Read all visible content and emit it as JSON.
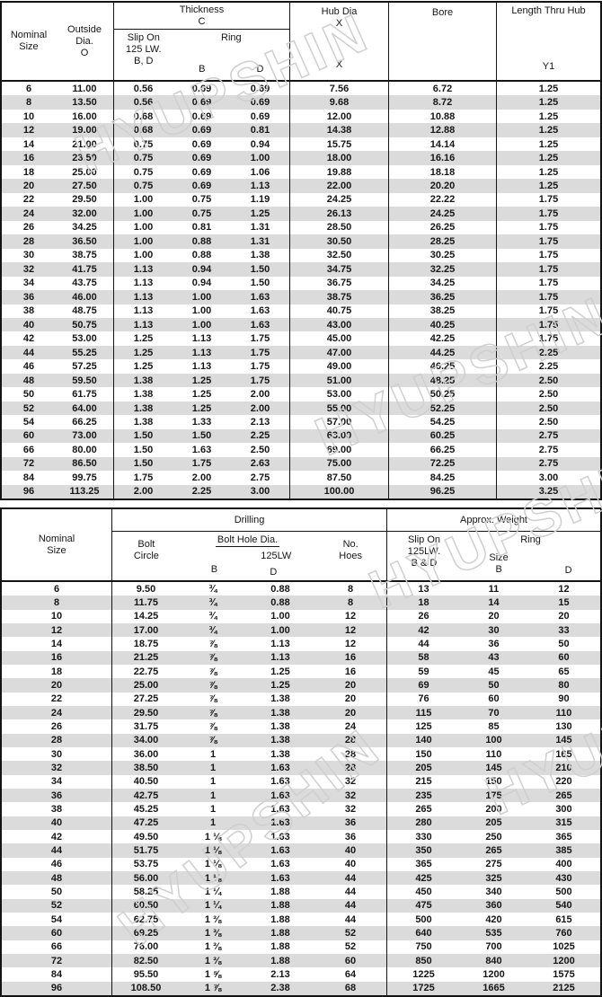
{
  "watermark": {
    "text": "HYUPSHIN"
  },
  "top_table": {
    "headers": {
      "nominal_l1": "Nominal",
      "nominal_l2": "Size",
      "outside_l1": "Outside",
      "outside_l2": "Dia.",
      "outside_l3": "O",
      "thickness": "Thickness",
      "thickness_c": "C",
      "slip_l1": "Slip On",
      "slip_l2": "125 LW.",
      "slip_l3": "B, D",
      "ring": "Ring",
      "ring_b": "B",
      "ring_d": "D",
      "hub_l1": "Hub Dia",
      "hub_l2": "X",
      "hub_x": "X",
      "bore": "Bore",
      "length": "Length Thru Hub",
      "length_y1": "Y1"
    },
    "rows": [
      [
        "6",
        "11.00",
        "0.56",
        "0.69",
        "0.69",
        "7.56",
        "6.72",
        "1.25"
      ],
      [
        "8",
        "13.50",
        "0.56",
        "0.69",
        "0.69",
        "9.68",
        "8.72",
        "1.25"
      ],
      [
        "10",
        "16.00",
        "0.68",
        "0.69",
        "0.69",
        "12.00",
        "10.88",
        "1.25"
      ],
      [
        "12",
        "19.00",
        "0.68",
        "0.69",
        "0.81",
        "14.38",
        "12.88",
        "1.25"
      ],
      [
        "14",
        "21.00",
        "0.75",
        "0.69",
        "0.94",
        "15.75",
        "14.14",
        "1.25"
      ],
      [
        "16",
        "23.50",
        "0.75",
        "0.69",
        "1.00",
        "18.00",
        "16.16",
        "1.25"
      ],
      [
        "18",
        "25.00",
        "0.75",
        "0.69",
        "1.06",
        "19.88",
        "18.18",
        "1.25"
      ],
      [
        "20",
        "27.50",
        "0.75",
        "0.69",
        "1.13",
        "22.00",
        "20.20",
        "1.25"
      ],
      [
        "22",
        "29.50",
        "1.00",
        "0.75",
        "1.19",
        "24.25",
        "22.22",
        "1.75"
      ],
      [
        "24",
        "32.00",
        "1.00",
        "0.75",
        "1.25",
        "26.13",
        "24.25",
        "1.75"
      ],
      [
        "26",
        "34.25",
        "1.00",
        "0.81",
        "1.31",
        "28.50",
        "26.25",
        "1.75"
      ],
      [
        "28",
        "36.50",
        "1.00",
        "0.88",
        "1.31",
        "30.50",
        "28.25",
        "1.75"
      ],
      [
        "30",
        "38.75",
        "1.00",
        "0.88",
        "1.38",
        "32.50",
        "30.25",
        "1.75"
      ],
      [
        "32",
        "41.75",
        "1.13",
        "0.94",
        "1.50",
        "34.75",
        "32.25",
        "1.75"
      ],
      [
        "34",
        "43.75",
        "1.13",
        "0.94",
        "1.50",
        "36.75",
        "34.25",
        "1.75"
      ],
      [
        "36",
        "46.00",
        "1.13",
        "1.00",
        "1.63",
        "38.75",
        "36.25",
        "1.75"
      ],
      [
        "38",
        "48.75",
        "1.13",
        "1.00",
        "1.63",
        "40.75",
        "38.25",
        "1.75"
      ],
      [
        "40",
        "50.75",
        "1.13",
        "1.00",
        "1.63",
        "43.00",
        "40.25",
        "1.75"
      ],
      [
        "42",
        "53.00",
        "1.25",
        "1.13",
        "1.75",
        "45.00",
        "42.25",
        "1.75"
      ],
      [
        "44",
        "55.25",
        "1.25",
        "1.13",
        "1.75",
        "47.00",
        "44.25",
        "2.25"
      ],
      [
        "46",
        "57.25",
        "1.25",
        "1.13",
        "1.75",
        "49.00",
        "46.25",
        "2.25"
      ],
      [
        "48",
        "59.50",
        "1.38",
        "1.25",
        "1.75",
        "51.00",
        "48.25",
        "2.50"
      ],
      [
        "50",
        "61.75",
        "1.38",
        "1.25",
        "2.00",
        "53.00",
        "50.25",
        "2.50"
      ],
      [
        "52",
        "64.00",
        "1.38",
        "1.25",
        "2.00",
        "55.00",
        "52.25",
        "2.50"
      ],
      [
        "54",
        "66.25",
        "1.38",
        "1.33",
        "2.13",
        "57.00",
        "54.25",
        "2.50"
      ],
      [
        "60",
        "73.00",
        "1.50",
        "1.50",
        "2.25",
        "63.00",
        "60.25",
        "2.75"
      ],
      [
        "66",
        "80.00",
        "1.50",
        "1.63",
        "2.50",
        "69.00",
        "66.25",
        "2.75"
      ],
      [
        "72",
        "86.50",
        "1.50",
        "1.75",
        "2.63",
        "75.00",
        "72.25",
        "2.75"
      ],
      [
        "84",
        "99.75",
        "1.75",
        "2.00",
        "2.75",
        "87.50",
        "84.25",
        "3.00"
      ],
      [
        "96",
        "113.25",
        "2.00",
        "2.25",
        "3.00",
        "100.00",
        "96.25",
        "3.25"
      ]
    ]
  },
  "bottom_table": {
    "headers": {
      "nominal_l1": "Nominal",
      "nominal_l2": "Size",
      "drilling": "Drilling",
      "approx_weight": "Approx. Weight",
      "bolt_l1": "Bolt",
      "bolt_l2": "Circle",
      "bolt_hole_dia": "Bolt Hole Dia.",
      "hole_b": "B",
      "hole_125": "125LW",
      "hole_d": "D",
      "no_l1": "No.",
      "no_l2": "Hoes",
      "slip_l1": "Slip On",
      "slip_l2": "125LW.",
      "slip_l3": "B & D",
      "ring": "Ring",
      "size": "Size",
      "size_b": "B",
      "ring_d": "D"
    },
    "rows": [
      [
        "6",
        "9.50",
        "¾",
        "0.88",
        "8",
        "13",
        "11",
        "12"
      ],
      [
        "8",
        "11.75",
        "¾",
        "0.88",
        "8",
        "18",
        "14",
        "15"
      ],
      [
        "10",
        "14.25",
        "¾",
        "1.00",
        "12",
        "26",
        "20",
        "20"
      ],
      [
        "12",
        "17.00",
        "¾",
        "1.00",
        "12",
        "42",
        "30",
        "33"
      ],
      [
        "14",
        "18.75",
        "⅞",
        "1.13",
        "12",
        "44",
        "36",
        "50"
      ],
      [
        "16",
        "21.25",
        "⅞",
        "1.13",
        "16",
        "58",
        "43",
        "60"
      ],
      [
        "18",
        "22.75",
        "⅞",
        "1.25",
        "16",
        "59",
        "45",
        "65"
      ],
      [
        "20",
        "25.00",
        "⅞",
        "1.25",
        "20",
        "69",
        "50",
        "80"
      ],
      [
        "22",
        "27.25",
        "⅞",
        "1.38",
        "20",
        "76",
        "60",
        "90"
      ],
      [
        "24",
        "29.50",
        "⅞",
        "1.38",
        "20",
        "115",
        "70",
        "110"
      ],
      [
        "26",
        "31.75",
        "⅞",
        "1.38",
        "24",
        "125",
        "85",
        "130"
      ],
      [
        "28",
        "34.00",
        "⅞",
        "1.38",
        "28",
        "140",
        "100",
        "145"
      ],
      [
        "30",
        "36.00",
        "1",
        "1.38",
        "28",
        "150",
        "110",
        "165"
      ],
      [
        "32",
        "38.50",
        "1",
        "1.63",
        "28",
        "205",
        "145",
        "210"
      ],
      [
        "34",
        "40.50",
        "1",
        "1.63",
        "32",
        "215",
        "150",
        "220"
      ],
      [
        "36",
        "42.75",
        "1",
        "1.63",
        "32",
        "235",
        "175",
        "265"
      ],
      [
        "38",
        "45.25",
        "1",
        "1.63",
        "32",
        "265",
        "200",
        "300"
      ],
      [
        "40",
        "47.25",
        "1",
        "1.63",
        "36",
        "280",
        "205",
        "315"
      ],
      [
        "42",
        "49.50",
        "1 ⅛",
        "1.63",
        "36",
        "330",
        "250",
        "365"
      ],
      [
        "44",
        "51.75",
        "1 ⅛",
        "1.63",
        "40",
        "350",
        "265",
        "385"
      ],
      [
        "46",
        "53.75",
        "1 ⅛",
        "1.63",
        "40",
        "365",
        "275",
        "400"
      ],
      [
        "48",
        "56.00",
        "1 ⅛",
        "1.63",
        "44",
        "425",
        "325",
        "430"
      ],
      [
        "50",
        "58.25",
        "1 ¼",
        "1.88",
        "44",
        "450",
        "340",
        "500"
      ],
      [
        "52",
        "60.50",
        "1 ¼",
        "1.88",
        "44",
        "475",
        "360",
        "540"
      ],
      [
        "54",
        "62.75",
        "1 ⅜",
        "1.88",
        "44",
        "500",
        "420",
        "615"
      ],
      [
        "60",
        "69.25",
        "1 ⅜",
        "1.88",
        "52",
        "640",
        "535",
        "760"
      ],
      [
        "66",
        "76.00",
        "1 ⅜",
        "1.88",
        "52",
        "750",
        "700",
        "1025"
      ],
      [
        "72",
        "82.50",
        "1 ⅜",
        "1.88",
        "60",
        "850",
        "840",
        "1200"
      ],
      [
        "84",
        "95.50",
        "1 ⅝",
        "2.13",
        "64",
        "1225",
        "1200",
        "1575"
      ],
      [
        "96",
        "108.50",
        "1 ⅞",
        "2.38",
        "68",
        "1725",
        "1665",
        "2125"
      ]
    ]
  }
}
